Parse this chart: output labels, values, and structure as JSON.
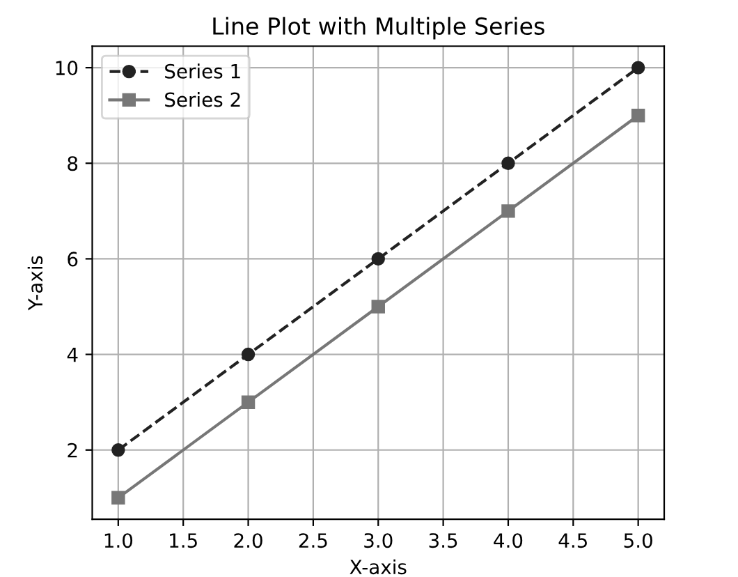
{
  "chart_data": {
    "type": "line",
    "title": "Line Plot with Multiple Series",
    "xlabel": "X-axis",
    "ylabel": "Y-axis",
    "x": [
      1,
      2,
      3,
      4,
      5
    ],
    "series": [
      {
        "name": "Series 1",
        "color": "#222222",
        "values": [
          2,
          4,
          6,
          8,
          10
        ],
        "marker": "circle",
        "line_style": "dashed"
      },
      {
        "name": "Series 2",
        "color": "#777777",
        "values": [
          1,
          3,
          5,
          7,
          9
        ],
        "marker": "square",
        "line_style": "solid"
      }
    ],
    "xlim": [
      0.8,
      5.2
    ],
    "ylim": [
      0.55,
      10.45
    ],
    "xticks": [
      {
        "value": 1,
        "label": "1.0"
      },
      {
        "value": 1.5,
        "label": "1.5"
      },
      {
        "value": 2,
        "label": "2.0"
      },
      {
        "value": 2.5,
        "label": "2.5"
      },
      {
        "value": 3,
        "label": "3.0"
      },
      {
        "value": 3.5,
        "label": "3.5"
      },
      {
        "value": 4,
        "label": "4.0"
      },
      {
        "value": 4.5,
        "label": "4.5"
      },
      {
        "value": 5,
        "label": "5.0"
      }
    ],
    "yticks": [
      2,
      4,
      6,
      8,
      10
    ],
    "grid": true,
    "legend": "top left"
  }
}
